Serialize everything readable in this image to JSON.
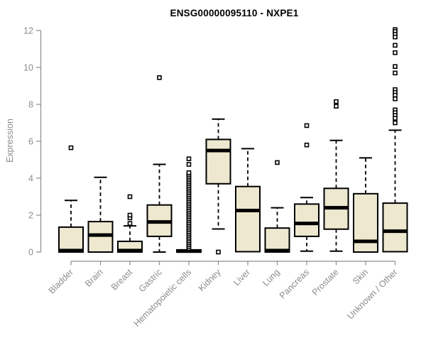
{
  "chart_data": {
    "type": "boxplot",
    "title": "ENSG00000095110 - NXPE1",
    "ylabel": "Expression",
    "xlabel": "",
    "ylim": [
      0,
      12
    ],
    "yticks": [
      0,
      2,
      4,
      6,
      8,
      10,
      12
    ],
    "grid": false,
    "legend": false,
    "colors": {
      "box_fill": "#EDE8CF",
      "box_stroke": "#000000",
      "median": "#000000",
      "whisker": "#000000",
      "outlier": "#000000",
      "axis": "#8C8C8C",
      "tick_label": "#8C8C8C",
      "title": "#000000",
      "background": "#FFFFFF"
    },
    "categories": [
      "Bladder",
      "Brain",
      "Breast",
      "Gastric",
      "Hematopoietic cells",
      "Kidney",
      "Liver",
      "Lung",
      "Pancreas",
      "Prostate",
      "Skin",
      "Unknown / Other"
    ],
    "boxes": [
      {
        "label": "Bladder",
        "q1": 0,
        "median": 0.08,
        "q3": 1.35,
        "whisker_low": null,
        "whisker_high": 2.8,
        "outliers": [
          5.65
        ]
      },
      {
        "label": "Brain",
        "q1": 0,
        "median": 0.92,
        "q3": 1.65,
        "whisker_low": null,
        "whisker_high": 4.05,
        "outliers": []
      },
      {
        "label": "Breast",
        "q1": 0,
        "median": 0.08,
        "q3": 0.58,
        "whisker_low": null,
        "whisker_high": 1.42,
        "outliers": [
          1.55,
          1.85,
          2.0,
          3.0
        ]
      },
      {
        "label": "Gastric",
        "q1": 0.85,
        "median": 1.63,
        "q3": 2.55,
        "whisker_low": 0,
        "whisker_high": 4.75,
        "outliers": [
          9.45
        ]
      },
      {
        "label": "Hematopoietic cells",
        "q1": 0,
        "median": 0.05,
        "q3": 0.12,
        "whisker_low": null,
        "whisker_high": null,
        "outliers": [
          0.2,
          0.3,
          0.4,
          0.5,
          0.6,
          0.7,
          0.8,
          0.9,
          1.0,
          1.1,
          1.2,
          1.3,
          1.4,
          1.5,
          1.6,
          1.7,
          1.8,
          1.9,
          2.0,
          2.1,
          2.2,
          2.3,
          2.4,
          2.5,
          2.6,
          2.7,
          2.8,
          2.9,
          3.0,
          3.1,
          3.2,
          3.3,
          3.4,
          3.5,
          3.6,
          3.7,
          3.8,
          3.9,
          4.0,
          4.1,
          4.2,
          4.3,
          4.75,
          5.05
        ]
      },
      {
        "label": "Kidney",
        "q1": 3.7,
        "median": 5.5,
        "q3": 6.1,
        "whisker_low": 1.25,
        "whisker_high": 7.2,
        "outliers": [
          0
        ]
      },
      {
        "label": "Liver",
        "q1": 0.02,
        "median": 2.25,
        "q3": 3.55,
        "whisker_low": null,
        "whisker_high": 5.6,
        "outliers": []
      },
      {
        "label": "Lung",
        "q1": 0,
        "median": 0.08,
        "q3": 1.3,
        "whisker_low": null,
        "whisker_high": 2.4,
        "outliers": [
          4.85
        ]
      },
      {
        "label": "Pancreas",
        "q1": 0.85,
        "median": 1.55,
        "q3": 2.6,
        "whisker_low": 0.05,
        "whisker_high": 2.95,
        "outliers": [
          5.8,
          6.85
        ]
      },
      {
        "label": "Prostate",
        "q1": 1.24,
        "median": 2.4,
        "q3": 3.45,
        "whisker_low": 0.05,
        "whisker_high": 6.05,
        "outliers": [
          7.9,
          8.15
        ]
      },
      {
        "label": "Skin",
        "q1": 0,
        "median": 0.58,
        "q3": 3.16,
        "whisker_low": null,
        "whisker_high": 5.1,
        "outliers": []
      },
      {
        "label": "Unknown / Other",
        "q1": 0.02,
        "median": 1.13,
        "q3": 2.65,
        "whisker_low": null,
        "whisker_high": 6.6,
        "outliers": [
          12.05,
          11.95,
          11.8,
          11.65,
          11.2,
          10.8,
          10.05,
          9.7,
          8.8,
          8.65,
          8.5,
          8.3,
          7.7,
          7.55,
          7.4,
          7.25,
          7.0
        ]
      }
    ]
  }
}
